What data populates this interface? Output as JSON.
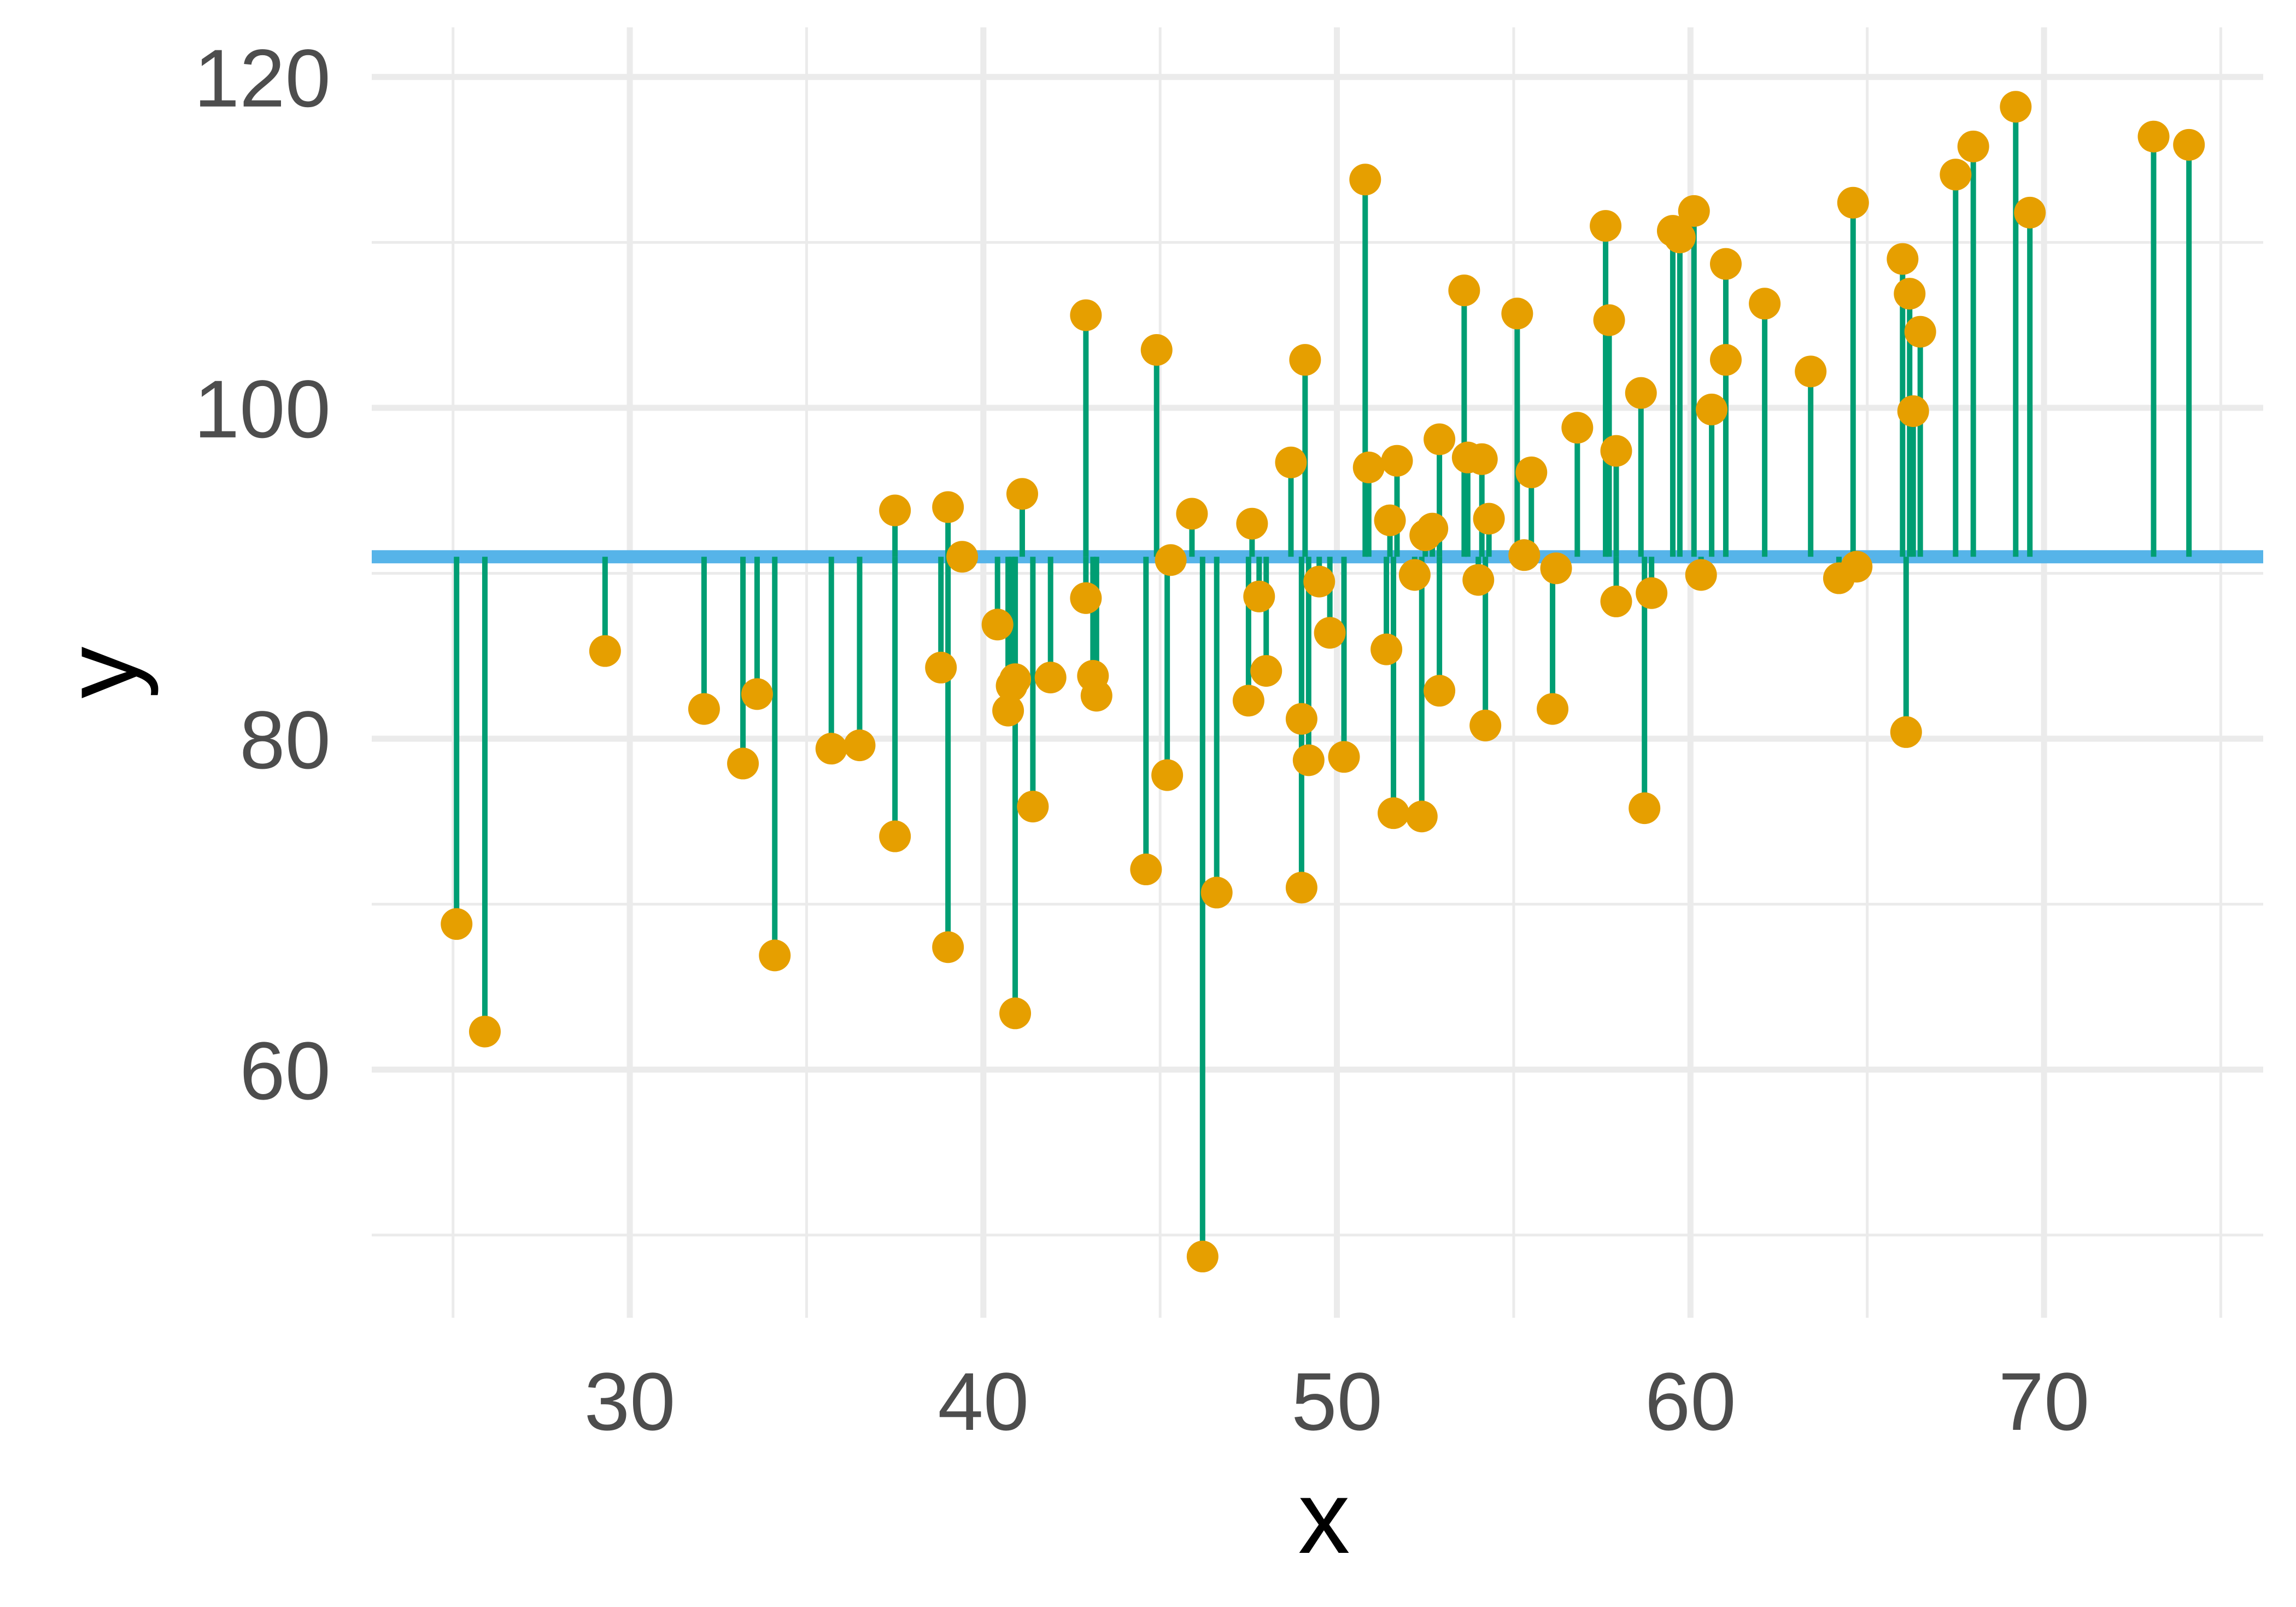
{
  "chart_data": {
    "type": "scatter",
    "title": "",
    "xlabel": "x",
    "ylabel": "y",
    "xlim": [
      22.7,
      76.2
    ],
    "ylim": [
      45.0,
      123.0
    ],
    "x_ticks": [
      30,
      40,
      50,
      60,
      70
    ],
    "y_ticks": [
      60,
      80,
      100,
      120
    ],
    "x_minor_ticks": [
      25,
      35,
      45,
      55,
      65,
      75
    ],
    "y_minor_ticks": [
      50,
      70,
      90,
      110
    ],
    "grid": true,
    "reference_line": {
      "y": 91.0,
      "color": "#56B4E9"
    },
    "colors": {
      "points": "#E69F00",
      "segments": "#009E73",
      "grid": "#ebebeb"
    },
    "points": [
      {
        "x": 25.1,
        "y": 68.8
      },
      {
        "x": 25.9,
        "y": 62.3
      },
      {
        "x": 29.3,
        "y": 85.3
      },
      {
        "x": 32.1,
        "y": 81.8
      },
      {
        "x": 33.2,
        "y": 78.5
      },
      {
        "x": 33.6,
        "y": 82.7
      },
      {
        "x": 34.1,
        "y": 66.9
      },
      {
        "x": 35.7,
        "y": 79.4
      },
      {
        "x": 36.5,
        "y": 79.6
      },
      {
        "x": 37.5,
        "y": 74.1
      },
      {
        "x": 37.5,
        "y": 93.8
      },
      {
        "x": 38.8,
        "y": 84.3
      },
      {
        "x": 39.0,
        "y": 94.0
      },
      {
        "x": 39.0,
        "y": 67.4
      },
      {
        "x": 39.4,
        "y": 91.0
      },
      {
        "x": 40.4,
        "y": 86.9
      },
      {
        "x": 40.7,
        "y": 81.7
      },
      {
        "x": 40.8,
        "y": 83.2
      },
      {
        "x": 40.9,
        "y": 63.4
      },
      {
        "x": 40.9,
        "y": 83.6
      },
      {
        "x": 41.1,
        "y": 94.8
      },
      {
        "x": 41.4,
        "y": 75.9
      },
      {
        "x": 41.9,
        "y": 83.7
      },
      {
        "x": 42.9,
        "y": 88.5
      },
      {
        "x": 42.9,
        "y": 105.6
      },
      {
        "x": 43.1,
        "y": 83.8
      },
      {
        "x": 43.2,
        "y": 82.6
      },
      {
        "x": 44.6,
        "y": 72.1
      },
      {
        "x": 44.9,
        "y": 103.5
      },
      {
        "x": 45.2,
        "y": 77.8
      },
      {
        "x": 45.3,
        "y": 90.8
      },
      {
        "x": 45.9,
        "y": 93.6
      },
      {
        "x": 46.2,
        "y": 48.7
      },
      {
        "x": 46.6,
        "y": 70.7
      },
      {
        "x": 47.5,
        "y": 82.3
      },
      {
        "x": 47.6,
        "y": 93.0
      },
      {
        "x": 47.8,
        "y": 88.6
      },
      {
        "x": 48.0,
        "y": 84.1
      },
      {
        "x": 48.7,
        "y": 96.7
      },
      {
        "x": 49.0,
        "y": 81.2
      },
      {
        "x": 49.0,
        "y": 71.0
      },
      {
        "x": 49.1,
        "y": 102.9
      },
      {
        "x": 49.2,
        "y": 78.7
      },
      {
        "x": 49.5,
        "y": 89.5
      },
      {
        "x": 49.8,
        "y": 86.4
      },
      {
        "x": 50.2,
        "y": 78.9
      },
      {
        "x": 50.8,
        "y": 113.8
      },
      {
        "x": 50.9,
        "y": 96.4
      },
      {
        "x": 51.4,
        "y": 85.4
      },
      {
        "x": 51.5,
        "y": 93.2
      },
      {
        "x": 51.6,
        "y": 75.5
      },
      {
        "x": 51.7,
        "y": 96.8
      },
      {
        "x": 52.2,
        "y": 89.9
      },
      {
        "x": 52.4,
        "y": 75.3
      },
      {
        "x": 52.5,
        "y": 92.3
      },
      {
        "x": 52.7,
        "y": 92.7
      },
      {
        "x": 52.9,
        "y": 82.9
      },
      {
        "x": 52.9,
        "y": 98.1
      },
      {
        "x": 53.6,
        "y": 107.1
      },
      {
        "x": 53.7,
        "y": 97.0
      },
      {
        "x": 54.0,
        "y": 89.6
      },
      {
        "x": 54.1,
        "y": 96.9
      },
      {
        "x": 54.2,
        "y": 80.8
      },
      {
        "x": 54.3,
        "y": 93.3
      },
      {
        "x": 55.1,
        "y": 105.7
      },
      {
        "x": 55.3,
        "y": 91.1
      },
      {
        "x": 55.5,
        "y": 96.1
      },
      {
        "x": 56.1,
        "y": 81.8
      },
      {
        "x": 56.2,
        "y": 90.3
      },
      {
        "x": 56.8,
        "y": 98.8
      },
      {
        "x": 57.6,
        "y": 111.0
      },
      {
        "x": 57.7,
        "y": 105.3
      },
      {
        "x": 57.9,
        "y": 88.3
      },
      {
        "x": 57.9,
        "y": 97.4
      },
      {
        "x": 58.6,
        "y": 100.9
      },
      {
        "x": 58.7,
        "y": 75.8
      },
      {
        "x": 58.9,
        "y": 88.8
      },
      {
        "x": 59.5,
        "y": 110.7
      },
      {
        "x": 59.7,
        "y": 110.3
      },
      {
        "x": 60.1,
        "y": 111.9
      },
      {
        "x": 60.3,
        "y": 89.9
      },
      {
        "x": 60.6,
        "y": 99.9
      },
      {
        "x": 61.0,
        "y": 108.7
      },
      {
        "x": 61.0,
        "y": 102.9
      },
      {
        "x": 62.1,
        "y": 106.3
      },
      {
        "x": 63.4,
        "y": 102.2
      },
      {
        "x": 64.2,
        "y": 89.7
      },
      {
        "x": 64.6,
        "y": 112.4
      },
      {
        "x": 64.7,
        "y": 90.4
      },
      {
        "x": 66.0,
        "y": 109.0
      },
      {
        "x": 66.1,
        "y": 80.4
      },
      {
        "x": 66.2,
        "y": 106.9
      },
      {
        "x": 66.3,
        "y": 99.8
      },
      {
        "x": 66.5,
        "y": 104.6
      },
      {
        "x": 67.5,
        "y": 114.1
      },
      {
        "x": 68.0,
        "y": 115.8
      },
      {
        "x": 69.2,
        "y": 118.2
      },
      {
        "x": 69.6,
        "y": 111.8
      },
      {
        "x": 73.1,
        "y": 116.4
      },
      {
        "x": 74.1,
        "y": 115.9
      }
    ]
  }
}
